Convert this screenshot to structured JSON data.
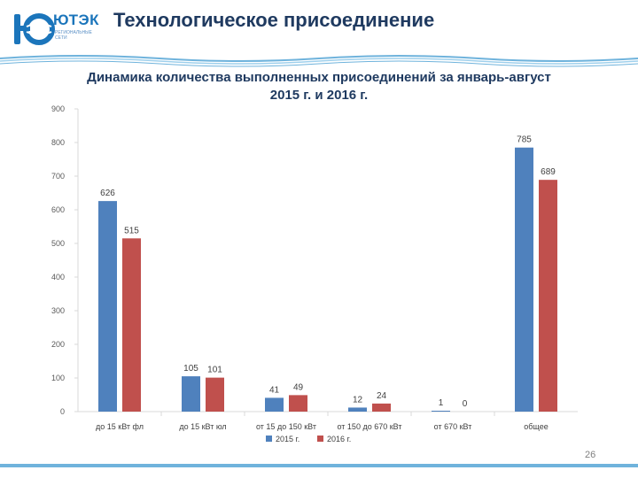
{
  "header": {
    "logo_text": "ЮТЭК",
    "logo_subtitle": "РЕГИОНАЛЬНЫЕ СЕТИ",
    "title": "Технологическое присоединение"
  },
  "page_number": "26",
  "colors": {
    "series_2015": "#4f81bd",
    "series_2016": "#c0504d",
    "header_text": "#1f3a60",
    "accent": "#6fb3dc"
  },
  "chart_data": {
    "type": "bar",
    "title_line1": "Динамика количества выполненных присоединений за январь-август",
    "title_line2": "2015 г. и 2016 г.",
    "categories": [
      "до 15 кВт фл",
      "до 15 кВт юл",
      "от 15 до 150 кВт",
      "от 150 до 670 кВт",
      "от 670 кВт",
      "общее"
    ],
    "series": [
      {
        "name": "2015 г.",
        "values": [
          626,
          105,
          41,
          12,
          1,
          785
        ]
      },
      {
        "name": "2016 г.",
        "values": [
          515,
          101,
          49,
          24,
          0,
          689
        ]
      }
    ],
    "ylim": [
      0,
      900
    ],
    "yticks": [
      0,
      100,
      200,
      300,
      400,
      500,
      600,
      700,
      800,
      900
    ],
    "grid": false,
    "legend": "bottom"
  }
}
